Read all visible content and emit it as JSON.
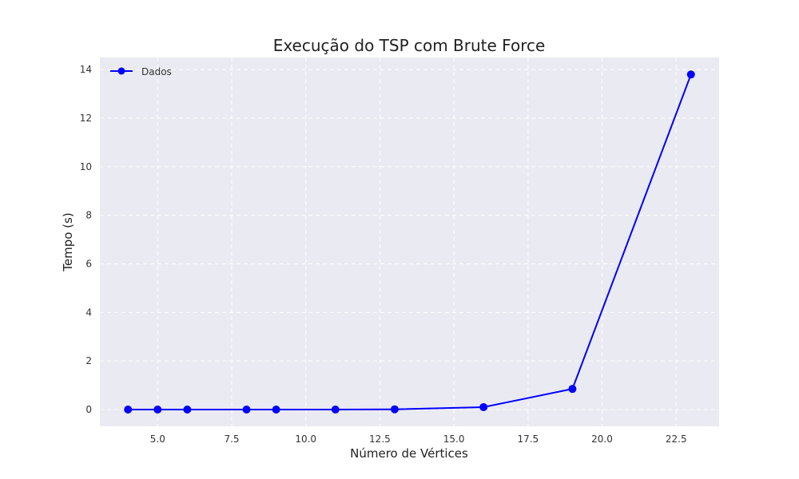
{
  "chart_data": {
    "type": "line",
    "title": "Execução do TSP com Brute Force",
    "xlabel": "Número de Vértices",
    "ylabel": "Tempo (s)",
    "xlim": [
      3.05,
      23.95
    ],
    "ylim": [
      -0.69,
      14.5
    ],
    "xticks": [
      5,
      7.5,
      10,
      12.5,
      15,
      17.5,
      20,
      22.5
    ],
    "xtick_labels": [
      "5.0",
      "7.5",
      "10.0",
      "12.5",
      "15.0",
      "17.5",
      "20.0",
      "22.5"
    ],
    "yticks": [
      0,
      2,
      4,
      6,
      8,
      10,
      12,
      14
    ],
    "ytick_labels": [
      "0",
      "2",
      "4",
      "6",
      "8",
      "10",
      "12",
      "14"
    ],
    "grid": true,
    "legend_position": "top-left",
    "series": [
      {
        "name": "Dados",
        "color": "#0000ff",
        "marker": "circle",
        "x": [
          4,
          5,
          6,
          8,
          9,
          11,
          13,
          16,
          19,
          23
        ],
        "y": [
          0.0,
          0.0,
          0.0,
          0.0,
          0.0,
          0.0,
          0.01,
          0.1,
          0.85,
          13.8
        ]
      }
    ],
    "background_color": "#eaeaf2"
  }
}
